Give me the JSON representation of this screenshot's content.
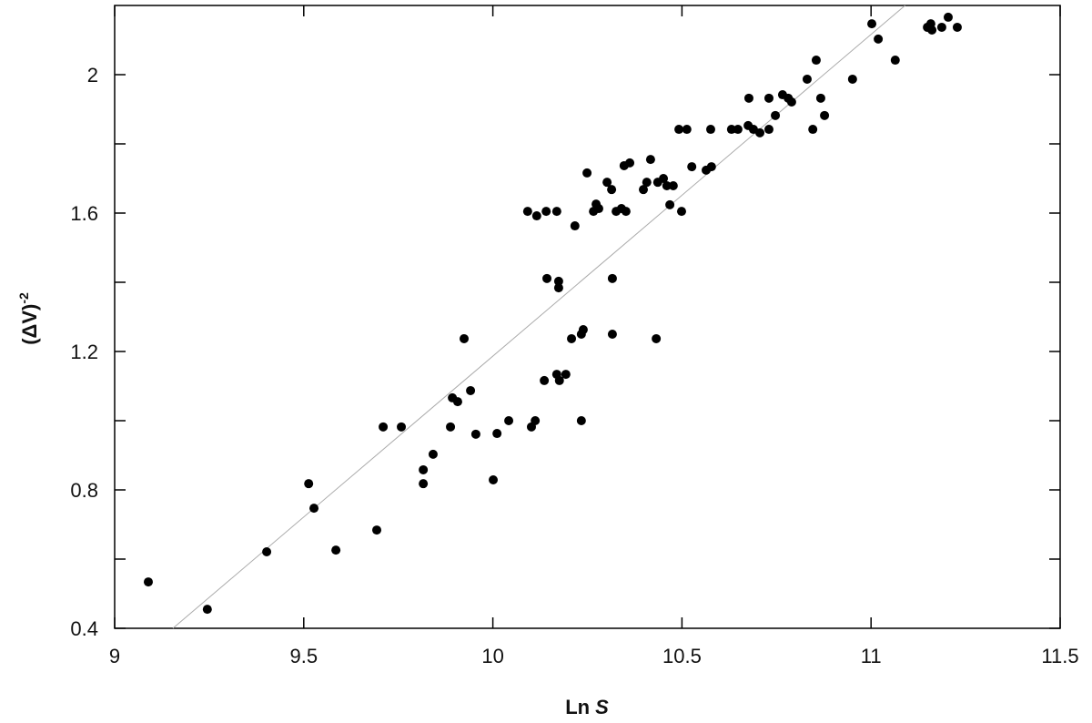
{
  "chart_data": {
    "type": "scatter",
    "xlabel": {
      "main": "Ln",
      "italic": "S"
    },
    "ylabel": {
      "main": "(ΔV)",
      "superscript": "-2"
    },
    "xlim": [
      9,
      11.5
    ],
    "xticks": [
      9,
      9.5,
      10,
      10.5,
      11,
      11.5
    ],
    "ylim": [
      0.4,
      2.2
    ],
    "yticks": [
      0.4,
      0.8,
      1.2,
      1.6,
      2
    ],
    "yticks_minor": [
      0.6,
      1.0,
      1.4,
      1.8
    ],
    "color": "#000000",
    "x": [
      9.089,
      9.245,
      9.402,
      9.513,
      9.527,
      9.585,
      9.693,
      9.71,
      9.758,
      9.816,
      9.816,
      9.842,
      9.888,
      9.893,
      9.907,
      9.924,
      9.941,
      9.955,
      10.001,
      10.011,
      10.042,
      10.102,
      10.112,
      10.092,
      10.116,
      10.141,
      10.169,
      10.143,
      10.174,
      10.174,
      10.136,
      10.169,
      10.176,
      10.193,
      10.208,
      10.217,
      10.234,
      10.239,
      10.234,
      10.249,
      10.266,
      10.273,
      10.28,
      10.302,
      10.314,
      10.316,
      10.316,
      10.326,
      10.34,
      10.352,
      10.347,
      10.362,
      10.398,
      10.407,
      10.417,
      10.432,
      10.436,
      10.451,
      10.46,
      10.468,
      10.477,
      10.492,
      10.499,
      10.513,
      10.526,
      10.564,
      10.578,
      10.576,
      10.631,
      10.648,
      10.675,
      10.677,
      10.689,
      10.706,
      10.73,
      10.73,
      10.747,
      10.766,
      10.781,
      10.79,
      10.831,
      10.846,
      10.855,
      10.867,
      10.877,
      10.951,
      11.002,
      11.019,
      11.064,
      11.149,
      11.158,
      11.161,
      11.187,
      11.204,
      11.228
    ],
    "values": [
      0.534,
      0.455,
      0.621,
      0.818,
      0.747,
      0.626,
      0.684,
      0.982,
      0.982,
      0.858,
      0.818,
      0.903,
      0.982,
      1.066,
      1.055,
      1.237,
      1.087,
      0.961,
      0.829,
      0.963,
      1.0,
      0.982,
      1.0,
      1.605,
      1.592,
      1.605,
      1.605,
      1.411,
      1.403,
      1.384,
      1.116,
      1.134,
      1.116,
      1.134,
      1.237,
      1.563,
      1.25,
      1.263,
      1.0,
      1.716,
      1.605,
      1.626,
      1.613,
      1.689,
      1.668,
      1.411,
      1.25,
      1.605,
      1.613,
      1.605,
      1.737,
      1.745,
      1.668,
      1.689,
      1.755,
      1.237,
      1.689,
      1.7,
      1.679,
      1.624,
      1.679,
      1.842,
      1.605,
      1.842,
      1.734,
      1.724,
      1.734,
      1.842,
      1.842,
      1.842,
      1.853,
      1.932,
      1.842,
      1.832,
      1.842,
      1.932,
      1.882,
      1.942,
      1.932,
      1.921,
      1.987,
      1.842,
      2.042,
      1.932,
      1.882,
      1.987,
      2.147,
      2.103,
      2.042,
      2.137,
      2.147,
      2.129,
      2.137,
      2.166,
      2.137
    ],
    "fit_line": {
      "x": [
        9.154,
        11.09
      ],
      "values": [
        0.4,
        2.2
      ],
      "color": "#aaaaaa"
    }
  }
}
